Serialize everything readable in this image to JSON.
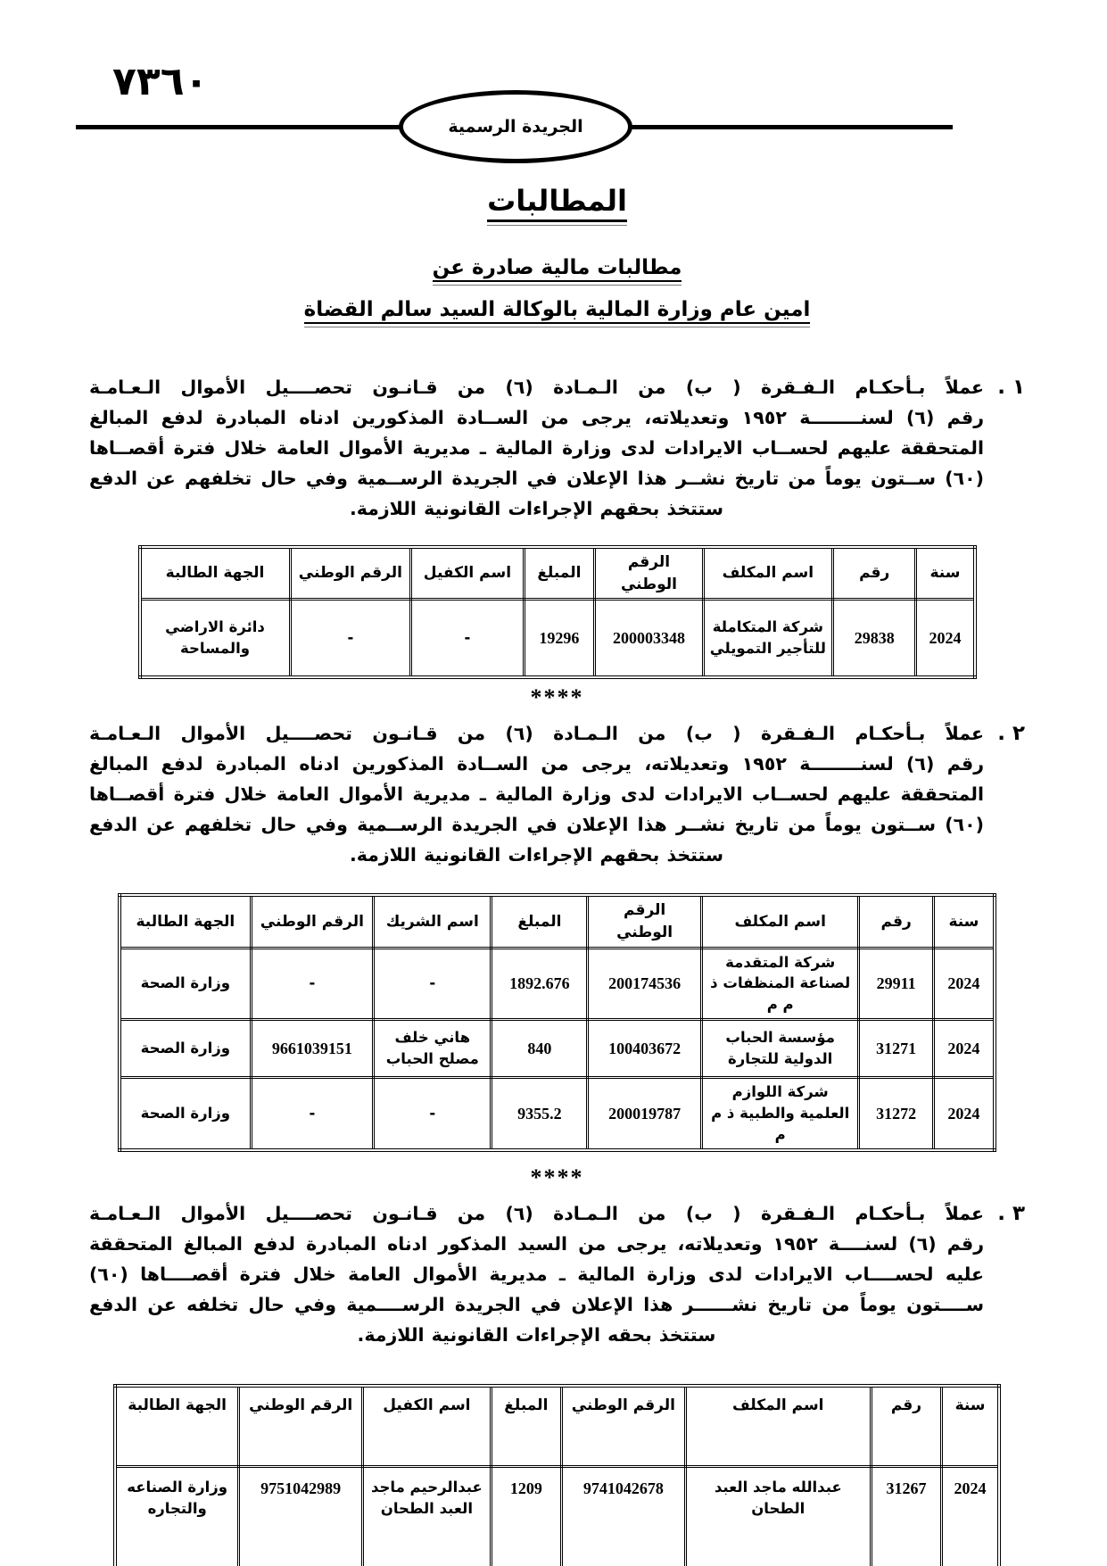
{
  "header": {
    "page_number": "٧٣٦٠",
    "banner": "الجريدة الرسمية"
  },
  "title": "المطالبات",
  "subtitle1": "مطالبات مالية صادرة عن",
  "subtitle2": "امين عام وزارة المالية بالوكالة السيد سالم القضاة",
  "separator": "****",
  "sections": [
    {
      "number": "١ .",
      "lines": [
        "عملاً بـأحكـام الـفـقرة ( ب) من الـمـادة (٦) من قـانـون تحصــــيل الأموال الـعـامـة",
        "رقم (٦) لسنــــــــة ١٩٥٢ وتعديلاته، يرجى من الســادة المذكورين ادناه المبادرة لدفع المبالغ",
        "المتحققة عليهم لحســاب الايرادات لدى وزارة المالية ـ مديرية الأموال العامة خلال فترة أقصــاها",
        "(٦٠) ســتون يوماً من تاريخ نشــر هذا الإعلان في الجريدة الرســمية وفي حال تخلفهم عن الدفع",
        "ستتخذ بحقهم الإجراءات القانونية اللازمة."
      ],
      "table": {
        "headers": [
          "سنة",
          "رقم",
          "اسم المكلف",
          "الرقم الوطني",
          "المبلغ",
          "اسم الكفيل",
          "الرقم الوطني",
          "الجهة الطالبة"
        ],
        "rows": [
          [
            "2024",
            "29838",
            "شركة المتكاملة للتأجير التمويلي",
            "200003348",
            "19296",
            "-",
            "-",
            "دائرة الاراضي والمساحة"
          ]
        ]
      }
    },
    {
      "number": "٢ .",
      "lines": [
        "عملاً بـأحكـام الـفـقرة ( ب) من الـمـادة (٦) من قـانـون تحصــــيل الأموال الـعـامـة",
        "رقم (٦) لسنــــــــة ١٩٥٢ وتعديلاته، يرجى من الســادة المذكورين ادناه المبادرة لدفع المبالغ",
        "المتحققة عليهم لحســاب الايرادات لدى وزارة المالية ـ مديرية الأموال العامة خلال فترة أقصــاها",
        "(٦٠) ســتون يوماً من تاريخ نشــر هذا الإعلان في الجريدة الرســمية وفي حال تخلفهم عن الدفع",
        "ستتخذ بحقهم الإجراءات القانونية اللازمة."
      ],
      "table": {
        "headers": [
          "سنة",
          "رقم",
          "اسم المكلف",
          "الرقم الوطني",
          "المبلغ",
          "اسم الشريك",
          "الرقم الوطني",
          "الجهة الطالبة"
        ],
        "rows": [
          [
            "2024",
            "29911",
            "شركة المتقدمة لصناعة المنظفات ذ م م",
            "200174536",
            "1892.676",
            "-",
            "-",
            "وزارة الصحة"
          ],
          [
            "2024",
            "31271",
            "مؤسسة الحباب الدولية للتجارة",
            "100403672",
            "840",
            "هاني خلف مصلح الحباب",
            "9661039151",
            "وزارة الصحة"
          ],
          [
            "2024",
            "31272",
            "شركة اللوازم العلمية والطبية ذ م م",
            "200019787",
            "9355.2",
            "-",
            "-",
            "وزارة الصحة"
          ]
        ]
      }
    },
    {
      "number": "٣ .",
      "lines": [
        "عملاً بـأحكـام الـفـقرة ( ب) من الـمـادة (٦) من قـانـون تحصــــيل الأموال الـعـامـة",
        "رقم (٦) لسنــــة ١٩٥٢ وتعديلاته، يرجى من السيد المذكور ادناه المبادرة لدفع المبالغ المتحققة",
        "عليه لحســــاب الايرادات لدى وزارة المالية ـ مديرية الأموال العامة خلال فترة أقصــــاها (٦٠)",
        "ســــتون يوماً من تاريخ نشــــــر هذا الإعلان في الجريدة الرســــمية وفي حال تخلفه عن الدفع",
        "ستتخذ بحقه الإجراءات القانونية اللازمة."
      ],
      "table": {
        "headers": [
          "سنة",
          "رقم",
          "اسم المكلف",
          "الرقم الوطني",
          "المبلغ",
          "اسم الكفيل",
          "الرقم الوطني",
          "الجهة الطالبة"
        ],
        "rows": [
          [
            "2024",
            "31267",
            "عبدالله ماجد العبد الطحان",
            "9741042678",
            "1209",
            "عبدالرحيم ماجد العبد الطحان",
            "9751042989",
            "وزارة الصناعه والتجاره"
          ]
        ]
      }
    }
  ]
}
